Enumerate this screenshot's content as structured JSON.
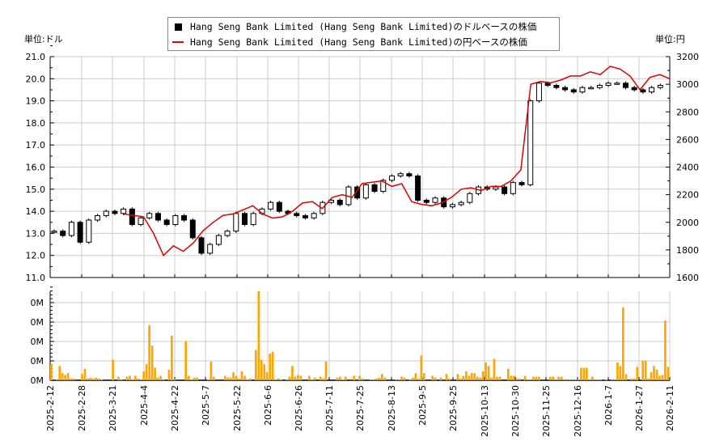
{
  "legend": {
    "usd_label": "Hang Seng Bank Limited (Hang Seng Bank Limited)のドルベースの株価",
    "jpy_label": "Hang Seng Bank Limited (Hang Seng Bank Limited)の円ベースの株価"
  },
  "units": {
    "left": "単位:ドル",
    "right": "単位:円"
  },
  "colors": {
    "candle": "#000000",
    "jpy_line": "#e00000",
    "volume": "#ffa500",
    "grid": "#cccccc"
  },
  "chart_data": [
    {
      "type": "candlestick+line",
      "title": "",
      "legend": [
        "Hang Seng Bank Limited (Hang Seng Bank Limited)のドルベースの株価",
        "Hang Seng Bank Limited (Hang Seng Bank Limited)の円ベースの株価"
      ],
      "ylabel_left": "単位:ドル",
      "ylabel_right": "単位:円",
      "ylim_left": [
        11.0,
        21.0
      ],
      "ylim_right": [
        1600,
        3200
      ],
      "yticks_left": [
        "11.0",
        "12.0",
        "13.0",
        "14.0",
        "15.0",
        "16.0",
        "17.0",
        "18.0",
        "19.0",
        "20.0",
        "21.0"
      ],
      "yticks_right": [
        "1600",
        "1800",
        "2000",
        "2200",
        "2400",
        "2600",
        "2800",
        "3000",
        "3200"
      ],
      "x_ticks": [
        "2025-2-12",
        "2025-2-28",
        "2025-3-21",
        "2025-4-4",
        "2025-4-22",
        "2025-5-7",
        "2025-5-22",
        "2025-6-6",
        "2025-6-26",
        "2025-7-11",
        "2025-7-25",
        "2025-8-13",
        "2025-9-5",
        "2025-9-25",
        "2025-10-13",
        "2025-10-30",
        "2025-11-25",
        "2025-12-16",
        "2026-1-7",
        "2026-1-27",
        "2026-2-11"
      ],
      "grid": true,
      "usd_close_approx": [
        13.1,
        12.9,
        13.5,
        12.6,
        13.6,
        13.8,
        14.0,
        13.9,
        14.1,
        13.4,
        13.7,
        13.9,
        13.6,
        13.4,
        13.8,
        13.6,
        12.8,
        12.1,
        12.5,
        12.9,
        13.1,
        13.9,
        13.4,
        13.9,
        14.1,
        14.4,
        14.0,
        13.9,
        13.8,
        13.7,
        13.9,
        14.4,
        14.5,
        14.3,
        15.1,
        14.6,
        15.2,
        14.9,
        15.4,
        15.6,
        15.7,
        15.6,
        14.5,
        14.4,
        14.6,
        14.2,
        14.3,
        14.4,
        14.8,
        15.1,
        15.0,
        15.1,
        14.8,
        15.3,
        15.2,
        19.0,
        19.8,
        19.7,
        19.6,
        19.5,
        19.4,
        19.6,
        19.6,
        19.7,
        19.8,
        19.8,
        19.6,
        19.5,
        19.4,
        19.6,
        19.7
      ],
      "jpy_close_approx": [
        2060,
        2050,
        2040,
        1920,
        1760,
        1830,
        1790,
        1850,
        1940,
        2000,
        2050,
        2060,
        2090,
        2120,
        2060,
        2030,
        2040,
        2080,
        2140,
        2150,
        2100,
        2180,
        2200,
        2180,
        2280,
        2290,
        2300,
        2260,
        2280,
        2150,
        2130,
        2120,
        2140,
        2180,
        2240,
        2250,
        2230,
        2260,
        2260,
        2300,
        2380,
        3000,
        3020,
        3010,
        3030,
        3060,
        3060,
        3090,
        3070,
        3130,
        3110,
        3060,
        2960,
        3050,
        3070,
        3040
      ]
    },
    {
      "type": "bar",
      "title": "",
      "ylabel": "",
      "yticks": [
        "0M",
        "0M",
        "0M",
        "0M",
        "0M"
      ],
      "x_ticks": [
        "2025-2-12",
        "2025-2-28",
        "2025-3-21",
        "2025-4-4",
        "2025-4-22",
        "2025-5-7",
        "2025-5-22",
        "2025-6-6",
        "2025-6-26",
        "2025-7-11",
        "2025-7-25",
        "2025-8-13",
        "2025-9-5",
        "2025-9-25",
        "2025-10-13",
        "2025-10-30",
        "2025-11-25",
        "2025-12-16",
        "2026-1-7",
        "2026-1-27",
        "2026-2-11"
      ],
      "values_relative": [
        0.18,
        0.0,
        0.01,
        0.16,
        0.08,
        0.06,
        0.08,
        0.02,
        0.02,
        0.0,
        0.0,
        0.07,
        0.13,
        0.02,
        0.03,
        0.02,
        0.03,
        0.02,
        0.01,
        0.0,
        0.0,
        0.0,
        0.23,
        0.0,
        0.04,
        0.01,
        0.0,
        0.04,
        0.05,
        0.01,
        0.05,
        0.02,
        0.01,
        0.1,
        0.18,
        0.62,
        0.39,
        0.14,
        0.03,
        0.05,
        0.01,
        0.0,
        0.12,
        0.5,
        0.01,
        0.0,
        0.0,
        0.0,
        0.44,
        0.05,
        0.01,
        0.03,
        0.03,
        0.0,
        0.0,
        0.0,
        0.01,
        0.21,
        0.04,
        0.0,
        0.0,
        0.0,
        0.05,
        0.03,
        0.03,
        0.09,
        0.05,
        0.02,
        0.1,
        0.05,
        0.01,
        0.02,
        0.0,
        0.34,
        1.0,
        0.23,
        0.18,
        0.09,
        0.3,
        0.32,
        0.01,
        0.02,
        0.01,
        0.0,
        0.01,
        0.04,
        0.16,
        0.04,
        0.06,
        0.05,
        0.0,
        0.0,
        0.05,
        0.01,
        0.03,
        0.0,
        0.04,
        0.02,
        0.21,
        0.0,
        0.0,
        0.0,
        0.03,
        0.04,
        0.01,
        0.04,
        0.0,
        0.0,
        0.05,
        0.0,
        0.05,
        0.02,
        0.0,
        0.0,
        0.01,
        0.01,
        0.02,
        0.03,
        0.07,
        0.03,
        0.0,
        0.0,
        0.0,
        0.01,
        0.01,
        0.04,
        0.03,
        0.0,
        0.01,
        0.03,
        0.08,
        0.02,
        0.28,
        0.08,
        0.0,
        0.0,
        0.05,
        0.03,
        0.0,
        0.03,
        0.0,
        0.07,
        0.02,
        0.0,
        0.0,
        0.07,
        0.02,
        0.05,
        0.1,
        0.05,
        0.08,
        0.08,
        0.04,
        0.03,
        0.1,
        0.2,
        0.16,
        0.03,
        0.24,
        0.04,
        0.04,
        0.0,
        0.0,
        0.13,
        0.05,
        0.05,
        0.02,
        0.02,
        0.0,
        0.05,
        0.01,
        0.01,
        0.04,
        0.04,
        0.04,
        0.0,
        0.0,
        0.0,
        0.04,
        0.04,
        0.01,
        0.04,
        0.04,
        0.01,
        0.01,
        0.01,
        0.01,
        0.01,
        0.01,
        0.14,
        0.14,
        0.14,
        0.01,
        0.04,
        0.01,
        0.01,
        0.01,
        0.0,
        0.01,
        0.0,
        0.01,
        0.01,
        0.2,
        0.16,
        0.82,
        0.07,
        0.0,
        0.02,
        0.02,
        0.15,
        0.0,
        0.22,
        0.22,
        0.02,
        0.09,
        0.16,
        0.12,
        0.05,
        0.06,
        0.67,
        0.15
      ]
    }
  ]
}
